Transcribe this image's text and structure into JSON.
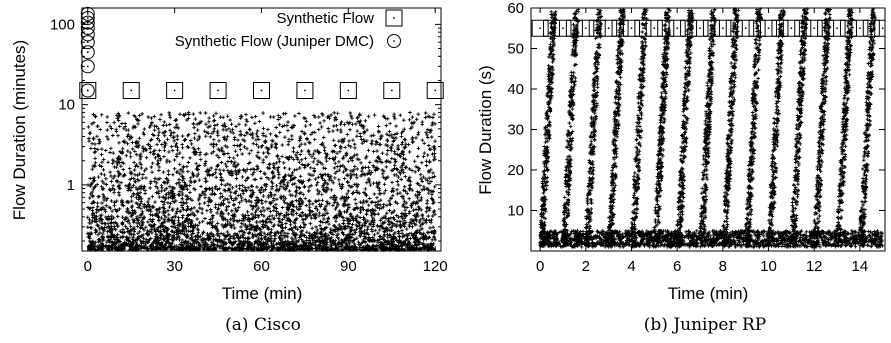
{
  "colors": {
    "points": "#000000",
    "frame": "#000000",
    "background": "#ffffff"
  },
  "chart_data": [
    {
      "type": "scatter",
      "caption": "(a) Cisco",
      "xlabel": "Time (min)",
      "ylabel": "Flow Duration (minutes)",
      "xlim": [
        -2,
        122
      ],
      "ylim": [
        0.15,
        160
      ],
      "yscale": "log",
      "xticks": [
        0,
        30,
        60,
        90,
        120
      ],
      "xtick_labels": [
        "0",
        "30",
        "60",
        "90",
        "120"
      ],
      "yticks": [
        1,
        10,
        100
      ],
      "ytick_labels": [
        "1",
        "10",
        "100"
      ],
      "legend_position": "top-right",
      "series": [
        {
          "name": "Synthetic Flow",
          "marker": "square",
          "x": [
            0,
            15,
            30,
            45,
            60,
            75,
            90,
            105,
            120
          ],
          "y": [
            15,
            15,
            15,
            15,
            15,
            15,
            15,
            15,
            15
          ]
        },
        {
          "name": "Synthetic Flow (Juniper DMC)",
          "marker": "circle",
          "x": [
            0,
            0,
            0,
            0,
            0,
            0,
            0,
            0,
            0
          ],
          "y": [
            15,
            30,
            45,
            60,
            75,
            90,
            105,
            120,
            135
          ]
        },
        {
          "marker": "plus",
          "kind": "background flows",
          "count": 5200,
          "x_range": [
            0,
            120
          ],
          "y_range": [
            0.15,
            8
          ]
        }
      ]
    },
    {
      "type": "scatter",
      "caption": "(b) Juniper RP",
      "xlabel": "Time (min)",
      "ylabel": "Flow Duration (s)",
      "xlim": [
        -0.4,
        15.1
      ],
      "ylim": [
        0,
        60
      ],
      "yscale": "linear",
      "xticks": [
        0,
        2,
        4,
        6,
        8,
        10,
        12,
        14
      ],
      "xtick_labels": [
        "0",
        "2",
        "4",
        "6",
        "8",
        "10",
        "12",
        "14"
      ],
      "yticks": [
        10,
        20,
        30,
        40,
        50,
        60
      ],
      "ytick_labels": [
        "10",
        "20",
        "30",
        "40",
        "50",
        "60"
      ],
      "series": [
        {
          "marker": "square",
          "x": [
            0,
            0.5,
            1,
            1.5,
            2,
            2.5,
            3,
            3.5,
            4,
            4.5,
            5,
            5.5,
            6,
            6.5,
            7,
            7.5,
            8,
            8.5,
            9,
            9.5,
            10,
            10.5,
            11,
            11.5,
            12,
            12.5,
            13,
            13.5,
            14,
            14.5,
            15
          ],
          "y": [
            55,
            55,
            55,
            55,
            55,
            55,
            55,
            55,
            55,
            55,
            55,
            55,
            55,
            55,
            55,
            55,
            55,
            55,
            55,
            55,
            55,
            55,
            55,
            55,
            55,
            55,
            55,
            55,
            55,
            55,
            55
          ]
        },
        {
          "marker": "plus",
          "kind": "background flows",
          "pattern": "one sawtooth per minute, from 0 to 60 s",
          "period": 1,
          "count": 6500,
          "x_range": [
            0,
            15
          ],
          "y_range": [
            0,
            60
          ]
        }
      ]
    }
  ]
}
